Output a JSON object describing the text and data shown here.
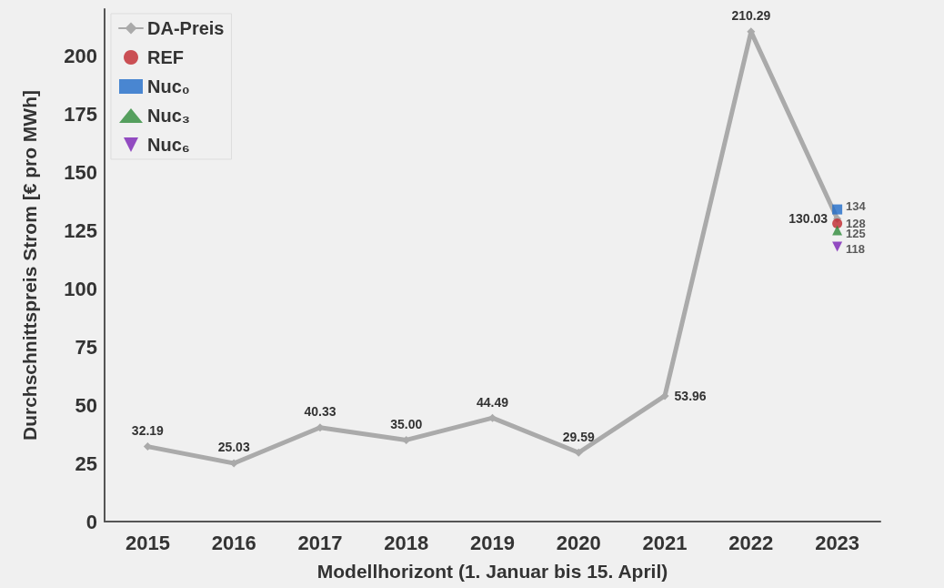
{
  "chart_data": {
    "type": "line",
    "xlabel": "Modellhorizont (1. Januar bis 15. April)",
    "ylabel": "Durchschnittspreis Strom [€ pro MWh]",
    "categories": [
      "2015",
      "2016",
      "2017",
      "2018",
      "2019",
      "2020",
      "2021",
      "2022",
      "2023"
    ],
    "series": [
      {
        "name": "DA-Preis",
        "color": "#aaaaaa",
        "marker": "diamond",
        "values": [
          32.19,
          25.03,
          40.33,
          35.0,
          44.49,
          29.59,
          53.96,
          210.29,
          130.03
        ],
        "value_labels": [
          "32.19",
          "25.03",
          "40.33",
          "35.00",
          "44.49",
          "29.59",
          "53.96",
          "210.29",
          "130.03"
        ]
      },
      {
        "name": "REF",
        "type": "scatter",
        "color": "#c0272d",
        "marker": "circle",
        "values": [
          null,
          null,
          null,
          null,
          null,
          null,
          null,
          null,
          128
        ],
        "value_labels": [
          null,
          null,
          null,
          null,
          null,
          null,
          null,
          null,
          "128"
        ]
      },
      {
        "name": "Nuc₀",
        "type": "scatter",
        "color": "#1f6cc9",
        "marker": "square",
        "values": [
          null,
          null,
          null,
          null,
          null,
          null,
          null,
          null,
          134
        ],
        "value_labels": [
          null,
          null,
          null,
          null,
          null,
          null,
          null,
          null,
          "134"
        ]
      },
      {
        "name": "Nuc₃",
        "type": "scatter",
        "color": "#2e8b3a",
        "marker": "triangle",
        "values": [
          null,
          null,
          null,
          null,
          null,
          null,
          null,
          null,
          125
        ],
        "value_labels": [
          null,
          null,
          null,
          null,
          null,
          null,
          null,
          null,
          "125"
        ]
      },
      {
        "name": "Nuc₆",
        "type": "scatter",
        "color": "#7a22b5",
        "marker": "triangle_down",
        "values": [
          null,
          null,
          null,
          null,
          null,
          null,
          null,
          null,
          118
        ],
        "value_labels": [
          null,
          null,
          null,
          null,
          null,
          null,
          null,
          null,
          "118"
        ]
      }
    ],
    "ylim": [
      0,
      220
    ],
    "yticks": [
      0,
      25,
      50,
      75,
      100,
      125,
      150,
      175,
      200
    ],
    "grid": false,
    "legend": "top left"
  }
}
